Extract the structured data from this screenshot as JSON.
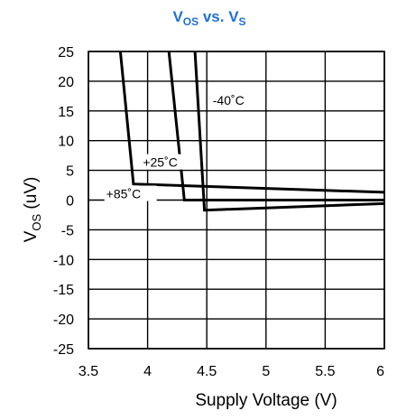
{
  "chart_data": {
    "type": "line",
    "title": {
      "main": "V",
      "sub1": "OS",
      "mid": " vs. V",
      "sub2": "S"
    },
    "xlabel": "Supply Voltage (V)",
    "ylabel": {
      "main": "V",
      "sub": "OS",
      "rest": " (uV)"
    },
    "xlim": [
      3.5,
      6
    ],
    "ylim": [
      -25,
      25
    ],
    "xticks": [
      "3.5",
      "4",
      "4.5",
      "5",
      "5.5",
      "6"
    ],
    "xtick_values": [
      3.5,
      4,
      4.5,
      5,
      5.5,
      6
    ],
    "yticks": [
      "25",
      "20",
      "15",
      "10",
      "5",
      "0",
      "-5",
      "-10",
      "-15",
      "-20",
      "-25"
    ],
    "ytick_values": [
      25,
      20,
      15,
      10,
      5,
      0,
      -5,
      -10,
      -15,
      -20,
      -25
    ],
    "grid": true,
    "series": [
      {
        "name": "+85˚C",
        "points": [
          [
            3.77,
            25
          ],
          [
            3.88,
            2.7
          ],
          [
            6,
            1.3
          ]
        ]
      },
      {
        "name": "+25˚C",
        "points": [
          [
            4.18,
            25
          ],
          [
            4.31,
            0
          ],
          [
            6,
            0
          ]
        ]
      },
      {
        "name": "-40˚C",
        "points": [
          [
            4.4,
            25
          ],
          [
            4.48,
            -1.7
          ],
          [
            6,
            -0.6
          ]
        ]
      }
    ],
    "annotations": [
      {
        "series": 2,
        "text": "-40˚C",
        "x": 4.55,
        "y": 16
      },
      {
        "series": 1,
        "text": "+25˚C",
        "x": 3.96,
        "y": 5.6
      },
      {
        "series": 0,
        "text": "+85˚C",
        "x": 3.65,
        "y": 0.3
      }
    ]
  }
}
